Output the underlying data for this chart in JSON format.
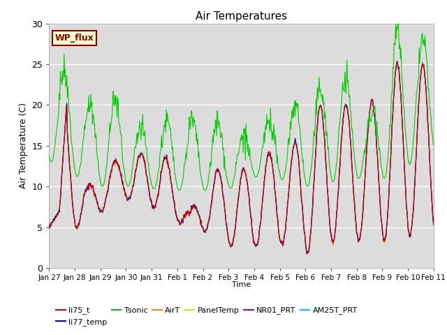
{
  "title": "Air Temperatures",
  "xlabel": "Time",
  "ylabel": "Air Temperature (C)",
  "ylim": [
    0,
    30
  ],
  "background_color": "#ffffff",
  "plot_bg_color": "#dcdcdc",
  "wp_flux_label": "WP_flux",
  "legend_entries": [
    "li75_t",
    "li77_temp",
    "Tsonic",
    "AirT",
    "PanelTemp",
    "NR01_PRT",
    "AM25T_PRT"
  ],
  "line_colors": {
    "li75_t": "#cc0000",
    "li77_temp": "#0000cc",
    "Tsonic": "#00cc00",
    "AirT": "#ff8800",
    "PanelTemp": "#dddd00",
    "NR01_PRT": "#aa00aa",
    "AM25T_PRT": "#00ccff"
  },
  "x_tick_labels": [
    "Jan 27",
    "Jan 28",
    "Jan 29",
    "Jan 30",
    "Jan 31",
    "Feb 1",
    "Feb 2",
    "Feb 3",
    "Feb 4",
    "Feb 5",
    "Feb 6",
    "Feb 7",
    "Feb 8",
    "Feb 9",
    "Feb 10",
    "Feb 11"
  ],
  "n_days": 15,
  "yticks": [
    0,
    5,
    10,
    15,
    20,
    25,
    30
  ],
  "figsize": [
    6.4,
    4.8
  ],
  "dpi": 100
}
